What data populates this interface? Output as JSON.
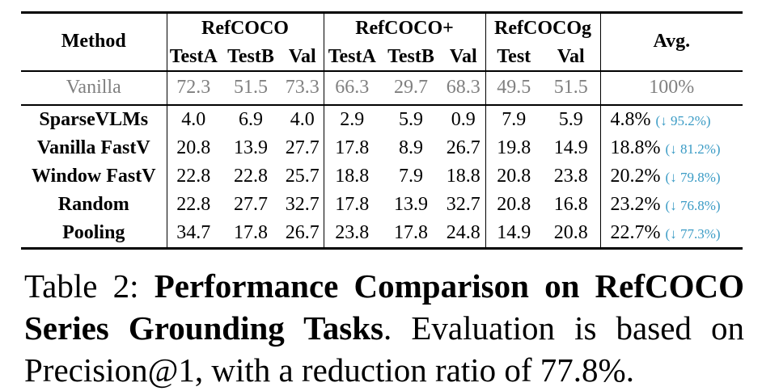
{
  "table": {
    "method_header": "Method",
    "avg_header": "Avg.",
    "groups": [
      "RefCOCO",
      "RefCOCO+",
      "RefCOCOg"
    ],
    "subheaders": [
      "TestA",
      "TestB",
      "Val",
      "TestA",
      "TestB",
      "Val",
      "Test",
      "Val"
    ],
    "vanilla": {
      "method": "Vanilla",
      "values": [
        "72.3",
        "51.5",
        "73.3",
        "66.3",
        "29.7",
        "68.3",
        "49.5",
        "51.5"
      ],
      "avg": "100%"
    },
    "rows": [
      {
        "method": "SparseVLMs",
        "values": [
          "4.0",
          "6.9",
          "4.0",
          "2.9",
          "5.9",
          "0.9",
          "7.9",
          "5.9"
        ],
        "avg": "4.8%",
        "drop": "(↓ 95.2%)"
      },
      {
        "method": "Vanilla FastV",
        "values": [
          "20.8",
          "13.9",
          "27.7",
          "17.8",
          "8.9",
          "26.7",
          "19.8",
          "14.9"
        ],
        "avg": "18.8%",
        "drop": "(↓ 81.2%)"
      },
      {
        "method": "Window FastV",
        "values": [
          "22.8",
          "22.8",
          "25.7",
          "18.8",
          "7.9",
          "18.8",
          "20.8",
          "23.8"
        ],
        "avg": "20.2%",
        "drop": "(↓ 79.8%)"
      },
      {
        "method": "Random",
        "values": [
          "22.8",
          "27.7",
          "32.7",
          "17.8",
          "13.9",
          "32.7",
          "20.8",
          "16.8"
        ],
        "avg": "23.2%",
        "drop": "(↓ 76.8%)"
      },
      {
        "method": "Pooling",
        "values": [
          "34.7",
          "17.8",
          "26.7",
          "23.8",
          "17.8",
          "24.8",
          "14.9",
          "20.8"
        ],
        "avg": "22.7%",
        "drop": "(↓ 77.3%)"
      }
    ]
  },
  "caption": {
    "label": "Table 2:",
    "title": "Performance Comparison on RefCOCO Series Grounding Tasks",
    "text": ". Evaluation is based on Precision@1, with a reduction ratio of 77.8%."
  },
  "colors": {
    "drop": "#3a9bc5",
    "vanilla": "#808080"
  }
}
